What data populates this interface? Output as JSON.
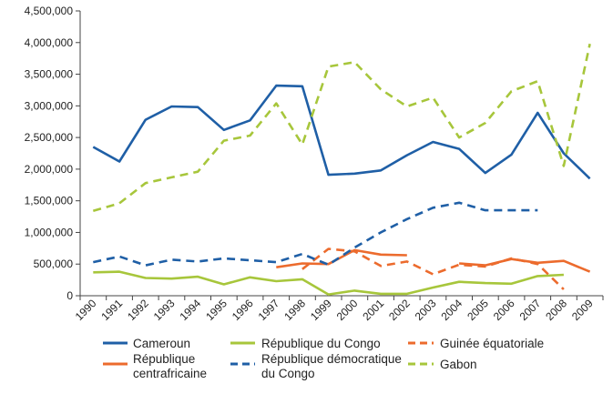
{
  "chart_data": {
    "type": "line",
    "title": "",
    "xlabel": "",
    "ylabel": "",
    "x": [
      "1990",
      "1991",
      "1992",
      "1993",
      "1994",
      "1995",
      "1996",
      "1997",
      "1998",
      "1999",
      "2000",
      "2001",
      "2002",
      "2003",
      "2004",
      "2005",
      "2006",
      "2007",
      "2008",
      "2009"
    ],
    "ylim": [
      0,
      4500000
    ],
    "yticks": [
      0,
      500000,
      1000000,
      1500000,
      2000000,
      2500000,
      3000000,
      3500000,
      4000000,
      4500000
    ],
    "ytick_labels": [
      "0",
      "500,000",
      "1,000,000",
      "1,500,000",
      "2,000,000",
      "2,500,000",
      "3,000,000",
      "3,500,000",
      "4,000,000",
      "4,500,000"
    ],
    "grid": false,
    "legend_position": "bottom",
    "series": [
      {
        "name": "Cameroun",
        "color": "#1f5fa6",
        "style": "solid",
        "values": [
          2350000,
          2120000,
          2780000,
          2990000,
          2980000,
          2620000,
          2770000,
          3320000,
          3310000,
          1910000,
          1930000,
          1980000,
          2220000,
          2430000,
          2320000,
          1940000,
          2230000,
          2890000,
          2250000,
          1850000
        ]
      },
      {
        "name": "République du Congo",
        "color": "#a7c63b",
        "style": "solid",
        "values": [
          370000,
          380000,
          280000,
          270000,
          300000,
          180000,
          290000,
          230000,
          260000,
          20000,
          80000,
          30000,
          30000,
          130000,
          220000,
          200000,
          190000,
          310000,
          330000,
          null
        ]
      },
      {
        "name": "Guinée équatoriale",
        "color": "#ec6b2d",
        "style": "dashed",
        "values": [
          null,
          null,
          null,
          null,
          null,
          null,
          null,
          null,
          420000,
          740000,
          700000,
          470000,
          540000,
          340000,
          490000,
          460000,
          590000,
          500000,
          100000,
          null
        ]
      },
      {
        "name": "République centrafricaine",
        "color": "#ec6b2d",
        "style": "solid",
        "values": [
          null,
          null,
          null,
          null,
          null,
          null,
          null,
          450000,
          510000,
          500000,
          720000,
          650000,
          640000,
          null,
          510000,
          480000,
          580000,
          520000,
          550000,
          380000
        ]
      },
      {
        "name": "République démocratique du Congo",
        "color": "#1f5fa6",
        "style": "dashed",
        "values": [
          530000,
          620000,
          480000,
          570000,
          540000,
          590000,
          560000,
          530000,
          660000,
          490000,
          760000,
          1000000,
          1210000,
          1390000,
          1470000,
          1350000,
          1350000,
          1350000,
          null,
          null
        ]
      },
      {
        "name": "Gabon",
        "color": "#a7c63b",
        "style": "dashed",
        "values": [
          1340000,
          1460000,
          1780000,
          1870000,
          1960000,
          2450000,
          2530000,
          3040000,
          2390000,
          3620000,
          3690000,
          3260000,
          2990000,
          3130000,
          2500000,
          2730000,
          3230000,
          3390000,
          2050000,
          3980000
        ]
      }
    ]
  },
  "legend": {
    "cameroun": "Cameroun",
    "congo": "République du Congo",
    "guinee": "Guinée équatoriale",
    "centrafrique_line1": "République",
    "centrafrique_line2": "centrafricaine",
    "rdc_line1": "République démocratique",
    "rdc_line2": "du Congo",
    "gabon": "Gabon"
  }
}
